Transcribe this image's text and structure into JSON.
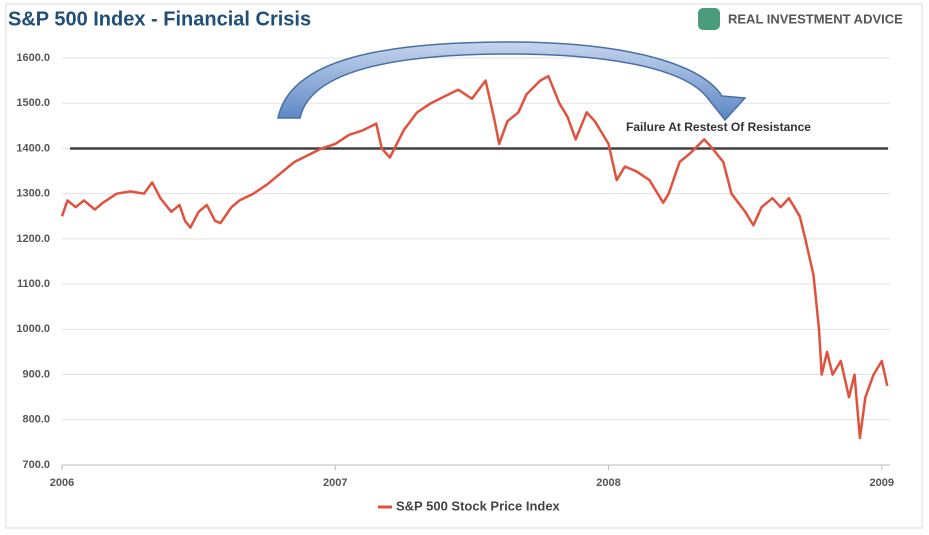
{
  "chart_data": {
    "type": "line",
    "title": "S&P 500 Index - Financial Crisis",
    "logo": "REAL INVESTMENT ADVICE",
    "annotation": "Failure At Restest Of Resistance",
    "reference_line": 1400,
    "x": [
      2006.0,
      2006.02,
      2006.05,
      2006.08,
      2006.12,
      2006.15,
      2006.2,
      2006.25,
      2006.3,
      2006.33,
      2006.36,
      2006.4,
      2006.43,
      2006.45,
      2006.47,
      2006.5,
      2006.53,
      2006.56,
      2006.58,
      2006.62,
      2006.65,
      2006.7,
      2006.75,
      2006.8,
      2006.85,
      2006.9,
      2006.95,
      2007.0,
      2007.05,
      2007.1,
      2007.15,
      2007.17,
      2007.2,
      2007.25,
      2007.3,
      2007.35,
      2007.4,
      2007.45,
      2007.5,
      2007.55,
      2007.58,
      2007.6,
      2007.63,
      2007.67,
      2007.7,
      2007.75,
      2007.78,
      2007.82,
      2007.85,
      2007.88,
      2007.92,
      2007.95,
      2008.0,
      2008.03,
      2008.06,
      2008.1,
      2008.15,
      2008.2,
      2008.22,
      2008.26,
      2008.3,
      2008.35,
      2008.38,
      2008.42,
      2008.45,
      2008.5,
      2008.53,
      2008.56,
      2008.6,
      2008.63,
      2008.66,
      2008.7,
      2008.72,
      2008.75,
      2008.77,
      2008.78,
      2008.8,
      2008.82,
      2008.85,
      2008.88,
      2008.9,
      2008.92,
      2008.94,
      2008.97,
      2009.0,
      2009.02
    ],
    "series": [
      {
        "name": "S&P 500 Stock Price Index",
        "color": "#e0523e",
        "values": [
          1250,
          1285,
          1270,
          1285,
          1265,
          1280,
          1300,
          1305,
          1300,
          1325,
          1290,
          1260,
          1275,
          1240,
          1225,
          1260,
          1275,
          1240,
          1235,
          1270,
          1285,
          1300,
          1320,
          1345,
          1370,
          1385,
          1400,
          1410,
          1430,
          1440,
          1455,
          1400,
          1380,
          1440,
          1480,
          1500,
          1515,
          1530,
          1510,
          1550,
          1470,
          1410,
          1460,
          1480,
          1520,
          1550,
          1560,
          1500,
          1470,
          1420,
          1480,
          1460,
          1410,
          1330,
          1360,
          1350,
          1330,
          1280,
          1300,
          1370,
          1390,
          1420,
          1400,
          1370,
          1300,
          1260,
          1230,
          1270,
          1290,
          1270,
          1290,
          1250,
          1200,
          1120,
          1000,
          900,
          950,
          900,
          930,
          850,
          900,
          760,
          850,
          900,
          930,
          875
        ]
      }
    ],
    "xlim": [
      2006,
      2009.03
    ],
    "xticks": [
      2006,
      2007,
      2008,
      2009
    ],
    "ylim": [
      700,
      1600
    ],
    "yticks": [
      {
        "value": 700,
        "label": "700.0"
      },
      {
        "value": 800,
        "label": "800.0"
      },
      {
        "value": 900,
        "label": "900.0"
      },
      {
        "value": 1000,
        "label": "1000.0"
      },
      {
        "value": 1100,
        "label": "1100.0"
      },
      {
        "value": 1200,
        "label": "1200.0"
      },
      {
        "value": 1300,
        "label": "1300.0"
      },
      {
        "value": 1400,
        "label": "1400.0"
      },
      {
        "value": 1500,
        "label": "1500.0"
      },
      {
        "value": 1600,
        "label": "1600.0"
      }
    ],
    "grid": true
  }
}
